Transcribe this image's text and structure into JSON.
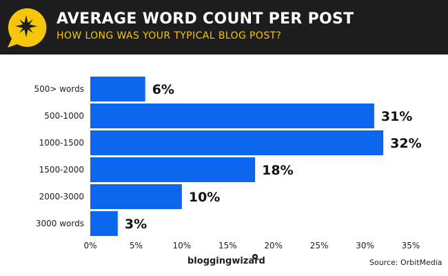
{
  "header": {
    "title": "AVERAGE WORD COUNT PER POST",
    "subtitle": "HOW LONG WAS YOUR TYPICAL BLOG POST?",
    "logo_icon": "star-speech-bubble-icon"
  },
  "colors": {
    "header_bg": "#1d1d1d",
    "accent_yellow": "#f6c60c",
    "bar": "#0b65ed"
  },
  "chart_data": {
    "type": "bar",
    "orientation": "horizontal",
    "categories": [
      "500> words",
      "500-1000",
      "1000-1500",
      "1500-2000",
      "2000-3000",
      "3000 words"
    ],
    "values": [
      6,
      31,
      32,
      18,
      10,
      3
    ],
    "value_labels": [
      "6%",
      "31%",
      "32%",
      "18%",
      "10%",
      "3%"
    ],
    "xlim": [
      0,
      35
    ],
    "x_ticks": [
      0,
      5,
      10,
      15,
      20,
      25,
      30,
      35
    ],
    "x_tick_labels": [
      "0%",
      "5%",
      "10%",
      "15%",
      "20%",
      "25%",
      "30%",
      "35%"
    ],
    "grid": false
  },
  "footer": {
    "brand": "bloggingwizard",
    "source": "Source: OrbitMedia"
  }
}
